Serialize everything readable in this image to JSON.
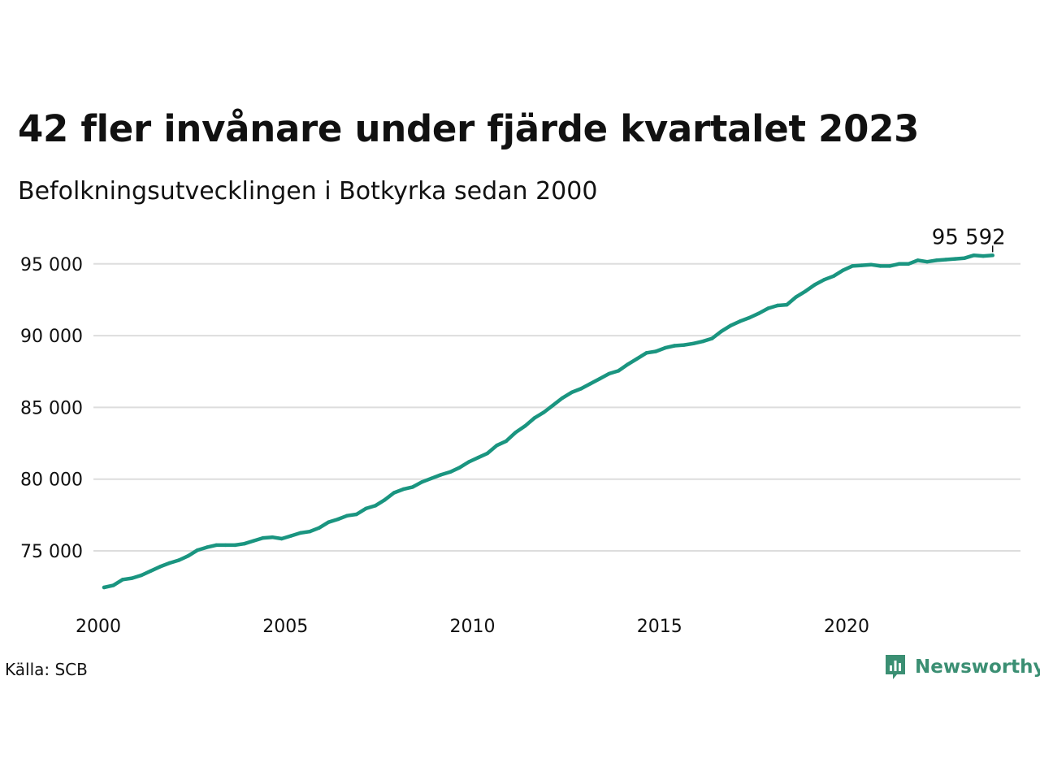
{
  "title": "42 fler invånare under fjärde kvartalet 2023",
  "subtitle": "Befolkningsutvecklingen i Botkyrka sedan 2000",
  "source": "Källa: SCB",
  "brand": {
    "name": "Newsworthy",
    "icon": "newsworthy-logo-icon",
    "color": "#3b8f73"
  },
  "colors": {
    "line": "#1a9580",
    "grid": "#dddddd",
    "text": "#111111"
  },
  "chart_data": {
    "type": "line",
    "xlim": [
      2000,
      2024.75
    ],
    "ylim": [
      72000,
      97000
    ],
    "x_ticks": [
      2000,
      2005,
      2010,
      2015,
      2020
    ],
    "x_tick_labels": [
      "2000",
      "2005",
      "2010",
      "2015",
      "2020"
    ],
    "y_ticks": [
      75000,
      80000,
      85000,
      90000,
      95000
    ],
    "y_tick_labels": [
      "75 000",
      "80 000",
      "85 000",
      "90 000",
      "95 000"
    ],
    "grid": "horizontal",
    "end_label": "95 592",
    "x": [
      2000.0,
      2000.25,
      2000.5,
      2000.75,
      2001.0,
      2001.25,
      2001.5,
      2001.75,
      2002.0,
      2002.25,
      2002.5,
      2002.75,
      2003.0,
      2003.25,
      2003.5,
      2003.75,
      2004.0,
      2004.25,
      2004.5,
      2004.75,
      2005.0,
      2005.25,
      2005.5,
      2005.75,
      2006.0,
      2006.25,
      2006.5,
      2006.75,
      2007.0,
      2007.25,
      2007.5,
      2007.75,
      2008.0,
      2008.25,
      2008.5,
      2008.75,
      2009.0,
      2009.25,
      2009.5,
      2009.75,
      2010.0,
      2010.25,
      2010.5,
      2010.75,
      2011.0,
      2011.25,
      2011.5,
      2011.75,
      2012.0,
      2012.25,
      2012.5,
      2012.75,
      2013.0,
      2013.25,
      2013.5,
      2013.75,
      2014.0,
      2014.25,
      2014.5,
      2014.75,
      2015.0,
      2015.25,
      2015.5,
      2015.75,
      2016.0,
      2016.25,
      2016.5,
      2016.75,
      2017.0,
      2017.25,
      2017.5,
      2017.75,
      2018.0,
      2018.25,
      2018.5,
      2018.75,
      2019.0,
      2019.25,
      2019.5,
      2019.75,
      2020.0,
      2020.25,
      2020.5,
      2020.75,
      2021.0,
      2021.25,
      2021.5,
      2021.75,
      2022.0,
      2022.25,
      2022.5,
      2022.75,
      2023.0,
      2023.25,
      2023.5,
      2023.75
    ],
    "series": [
      {
        "values": [
          72450,
          72600,
          73000,
          73100,
          73300,
          73600,
          73900,
          74150,
          74350,
          74650,
          75050,
          75250,
          75400,
          75400,
          75400,
          75500,
          75700,
          75900,
          75950,
          75850,
          76050,
          76250,
          76350,
          76600,
          77000,
          77200,
          77450,
          77550,
          77950,
          78150,
          78550,
          79050,
          79300,
          79450,
          79800,
          80050,
          80300,
          80500,
          80800,
          81200,
          81500,
          81800,
          82350,
          82650,
          83250,
          83700,
          84250,
          84650,
          85150,
          85650,
          86050,
          86300,
          86650,
          87000,
          87350,
          87550,
          88000,
          88400,
          88800,
          88900,
          89150,
          89300,
          89350,
          89450,
          89600,
          89800,
          90300,
          90700,
          91000,
          91250,
          91550,
          91900,
          92100,
          92150,
          92700,
          93100,
          93550,
          93900,
          94150,
          94550,
          94850,
          94900,
          94950,
          94850,
          94850,
          95000,
          95000,
          95250,
          95150,
          95250,
          95300,
          95350,
          95400,
          95600,
          95550,
          95592
        ]
      }
    ]
  }
}
